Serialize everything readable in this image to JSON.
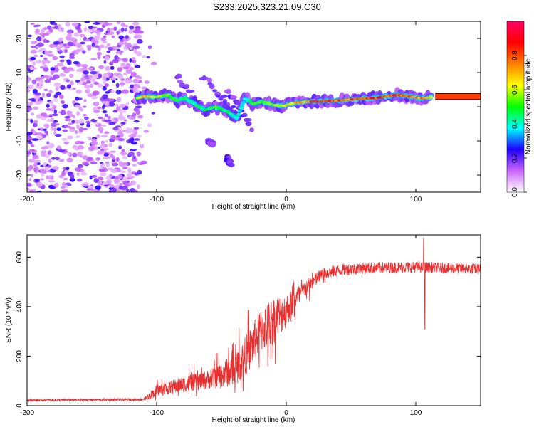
{
  "title": "S233.2025.323.21.09.C30",
  "colors": {
    "snr_line": "#e83030",
    "axis": "#000000",
    "background": "#ffffff"
  },
  "chart_data": [
    {
      "type": "heatmap",
      "name": "spectrogram",
      "xlabel": "Height of straight line (km)",
      "ylabel": "Frequency (Hz)",
      "xlim": [
        -200,
        150
      ],
      "ylim": [
        -25,
        25
      ],
      "x_ticks": [
        -200,
        -100,
        0,
        100
      ],
      "y_ticks": [
        -20,
        -10,
        0,
        10,
        20
      ],
      "colorbar": {
        "label": "Normalized spectral amplitude",
        "range": [
          0,
          1
        ],
        "ticks": [
          "0.0",
          "0.2",
          "0.4",
          "0.6",
          "0.8"
        ],
        "tick_values": [
          0,
          0.2,
          0.4,
          0.6,
          0.8
        ],
        "colormap_stops": [
          "#ffffff",
          "#cc66ff",
          "#2000ff",
          "#00ffff",
          "#00ff00",
          "#ffff00",
          "#ff8000",
          "#ff0000",
          "#ff0066"
        ]
      },
      "noise_region_x": [
        -200,
        -100
      ],
      "ridge": [
        {
          "x": -115,
          "y": 2.5,
          "a": 0.55
        },
        {
          "x": -110,
          "y": 3.0,
          "a": 0.7
        },
        {
          "x": -100,
          "y": 2.8,
          "a": 0.6
        },
        {
          "x": -92,
          "y": 3.5,
          "a": 0.55
        },
        {
          "x": -85,
          "y": 1.8,
          "a": 0.5
        },
        {
          "x": -78,
          "y": 2.5,
          "a": 0.45
        },
        {
          "x": -70,
          "y": 0.5,
          "a": 0.45
        },
        {
          "x": -63,
          "y": -1.0,
          "a": 0.45
        },
        {
          "x": -55,
          "y": 0.0,
          "a": 0.5
        },
        {
          "x": -45,
          "y": -1.5,
          "a": 0.45
        },
        {
          "x": -38,
          "y": -3.5,
          "a": 0.4
        },
        {
          "x": -32,
          "y": 2.5,
          "a": 0.4
        },
        {
          "x": -25,
          "y": 0.8,
          "a": 0.5
        },
        {
          "x": -18,
          "y": 1.5,
          "a": 0.55
        },
        {
          "x": -10,
          "y": 0.5,
          "a": 0.55
        },
        {
          "x": -2,
          "y": 0.2,
          "a": 0.6
        },
        {
          "x": 5,
          "y": 1.0,
          "a": 0.65
        },
        {
          "x": 15,
          "y": 1.5,
          "a": 0.75
        },
        {
          "x": 25,
          "y": 1.5,
          "a": 0.85
        },
        {
          "x": 40,
          "y": 1.8,
          "a": 0.8
        },
        {
          "x": 55,
          "y": 2.3,
          "a": 0.8
        },
        {
          "x": 70,
          "y": 2.6,
          "a": 0.85
        },
        {
          "x": 85,
          "y": 3.5,
          "a": 0.85
        },
        {
          "x": 95,
          "y": 3.0,
          "a": 0.8
        },
        {
          "x": 105,
          "y": 2.5,
          "a": 0.75
        },
        {
          "x": 112,
          "y": 2.8,
          "a": 0.75
        }
      ],
      "branches": [
        {
          "x": [
            -85,
            -60
          ],
          "y": [
            9,
            -2
          ]
        },
        {
          "x": [
            -65,
            -40
          ],
          "y": [
            9,
            -1
          ]
        },
        {
          "x": [
            -45,
            -27
          ],
          "y": [
            5,
            -6
          ]
        },
        {
          "x": [
            -60,
            -56
          ],
          "y": [
            -10,
            -11
          ]
        },
        {
          "x": [
            -46,
            -43
          ],
          "y": [
            -15,
            -17
          ]
        }
      ],
      "plateau": {
        "x": [
          115,
          150
        ],
        "y_center": 3.0,
        "half_height": 0.8
      }
    },
    {
      "type": "line",
      "name": "snr",
      "xlabel": "Height of straight line (km)",
      "ylabel": "SNR (10 * v/v)",
      "xlim": [
        -200,
        150
      ],
      "ylim": [
        0,
        690
      ],
      "x_ticks": [
        -200,
        -100,
        0,
        100
      ],
      "y_ticks": [
        0,
        200,
        400,
        600
      ],
      "envelope": [
        {
          "x": -200,
          "y": 22
        },
        {
          "x": -110,
          "y": 25
        },
        {
          "x": -100,
          "y": 60
        },
        {
          "x": -80,
          "y": 85
        },
        {
          "x": -60,
          "y": 105
        },
        {
          "x": -40,
          "y": 145
        },
        {
          "x": -30,
          "y": 210
        },
        {
          "x": -20,
          "y": 300
        },
        {
          "x": -10,
          "y": 345
        },
        {
          "x": 0,
          "y": 385
        },
        {
          "x": 10,
          "y": 450
        },
        {
          "x": 20,
          "y": 500
        },
        {
          "x": 30,
          "y": 535
        },
        {
          "x": 45,
          "y": 550
        },
        {
          "x": 60,
          "y": 555
        },
        {
          "x": 80,
          "y": 558
        },
        {
          "x": 100,
          "y": 560
        },
        {
          "x": 120,
          "y": 556
        },
        {
          "x": 150,
          "y": 552
        }
      ],
      "noise_amplitude": [
        {
          "x": -200,
          "y": 10
        },
        {
          "x": -110,
          "y": 10
        },
        {
          "x": -100,
          "y": 45
        },
        {
          "x": -60,
          "y": 70
        },
        {
          "x": -30,
          "y": 150
        },
        {
          "x": -10,
          "y": 180
        },
        {
          "x": 10,
          "y": 70
        },
        {
          "x": 30,
          "y": 45
        },
        {
          "x": 150,
          "y": 40
        }
      ],
      "spikes": [
        {
          "x": 106,
          "y": 680
        },
        {
          "x": 107,
          "y": 310
        }
      ]
    }
  ]
}
